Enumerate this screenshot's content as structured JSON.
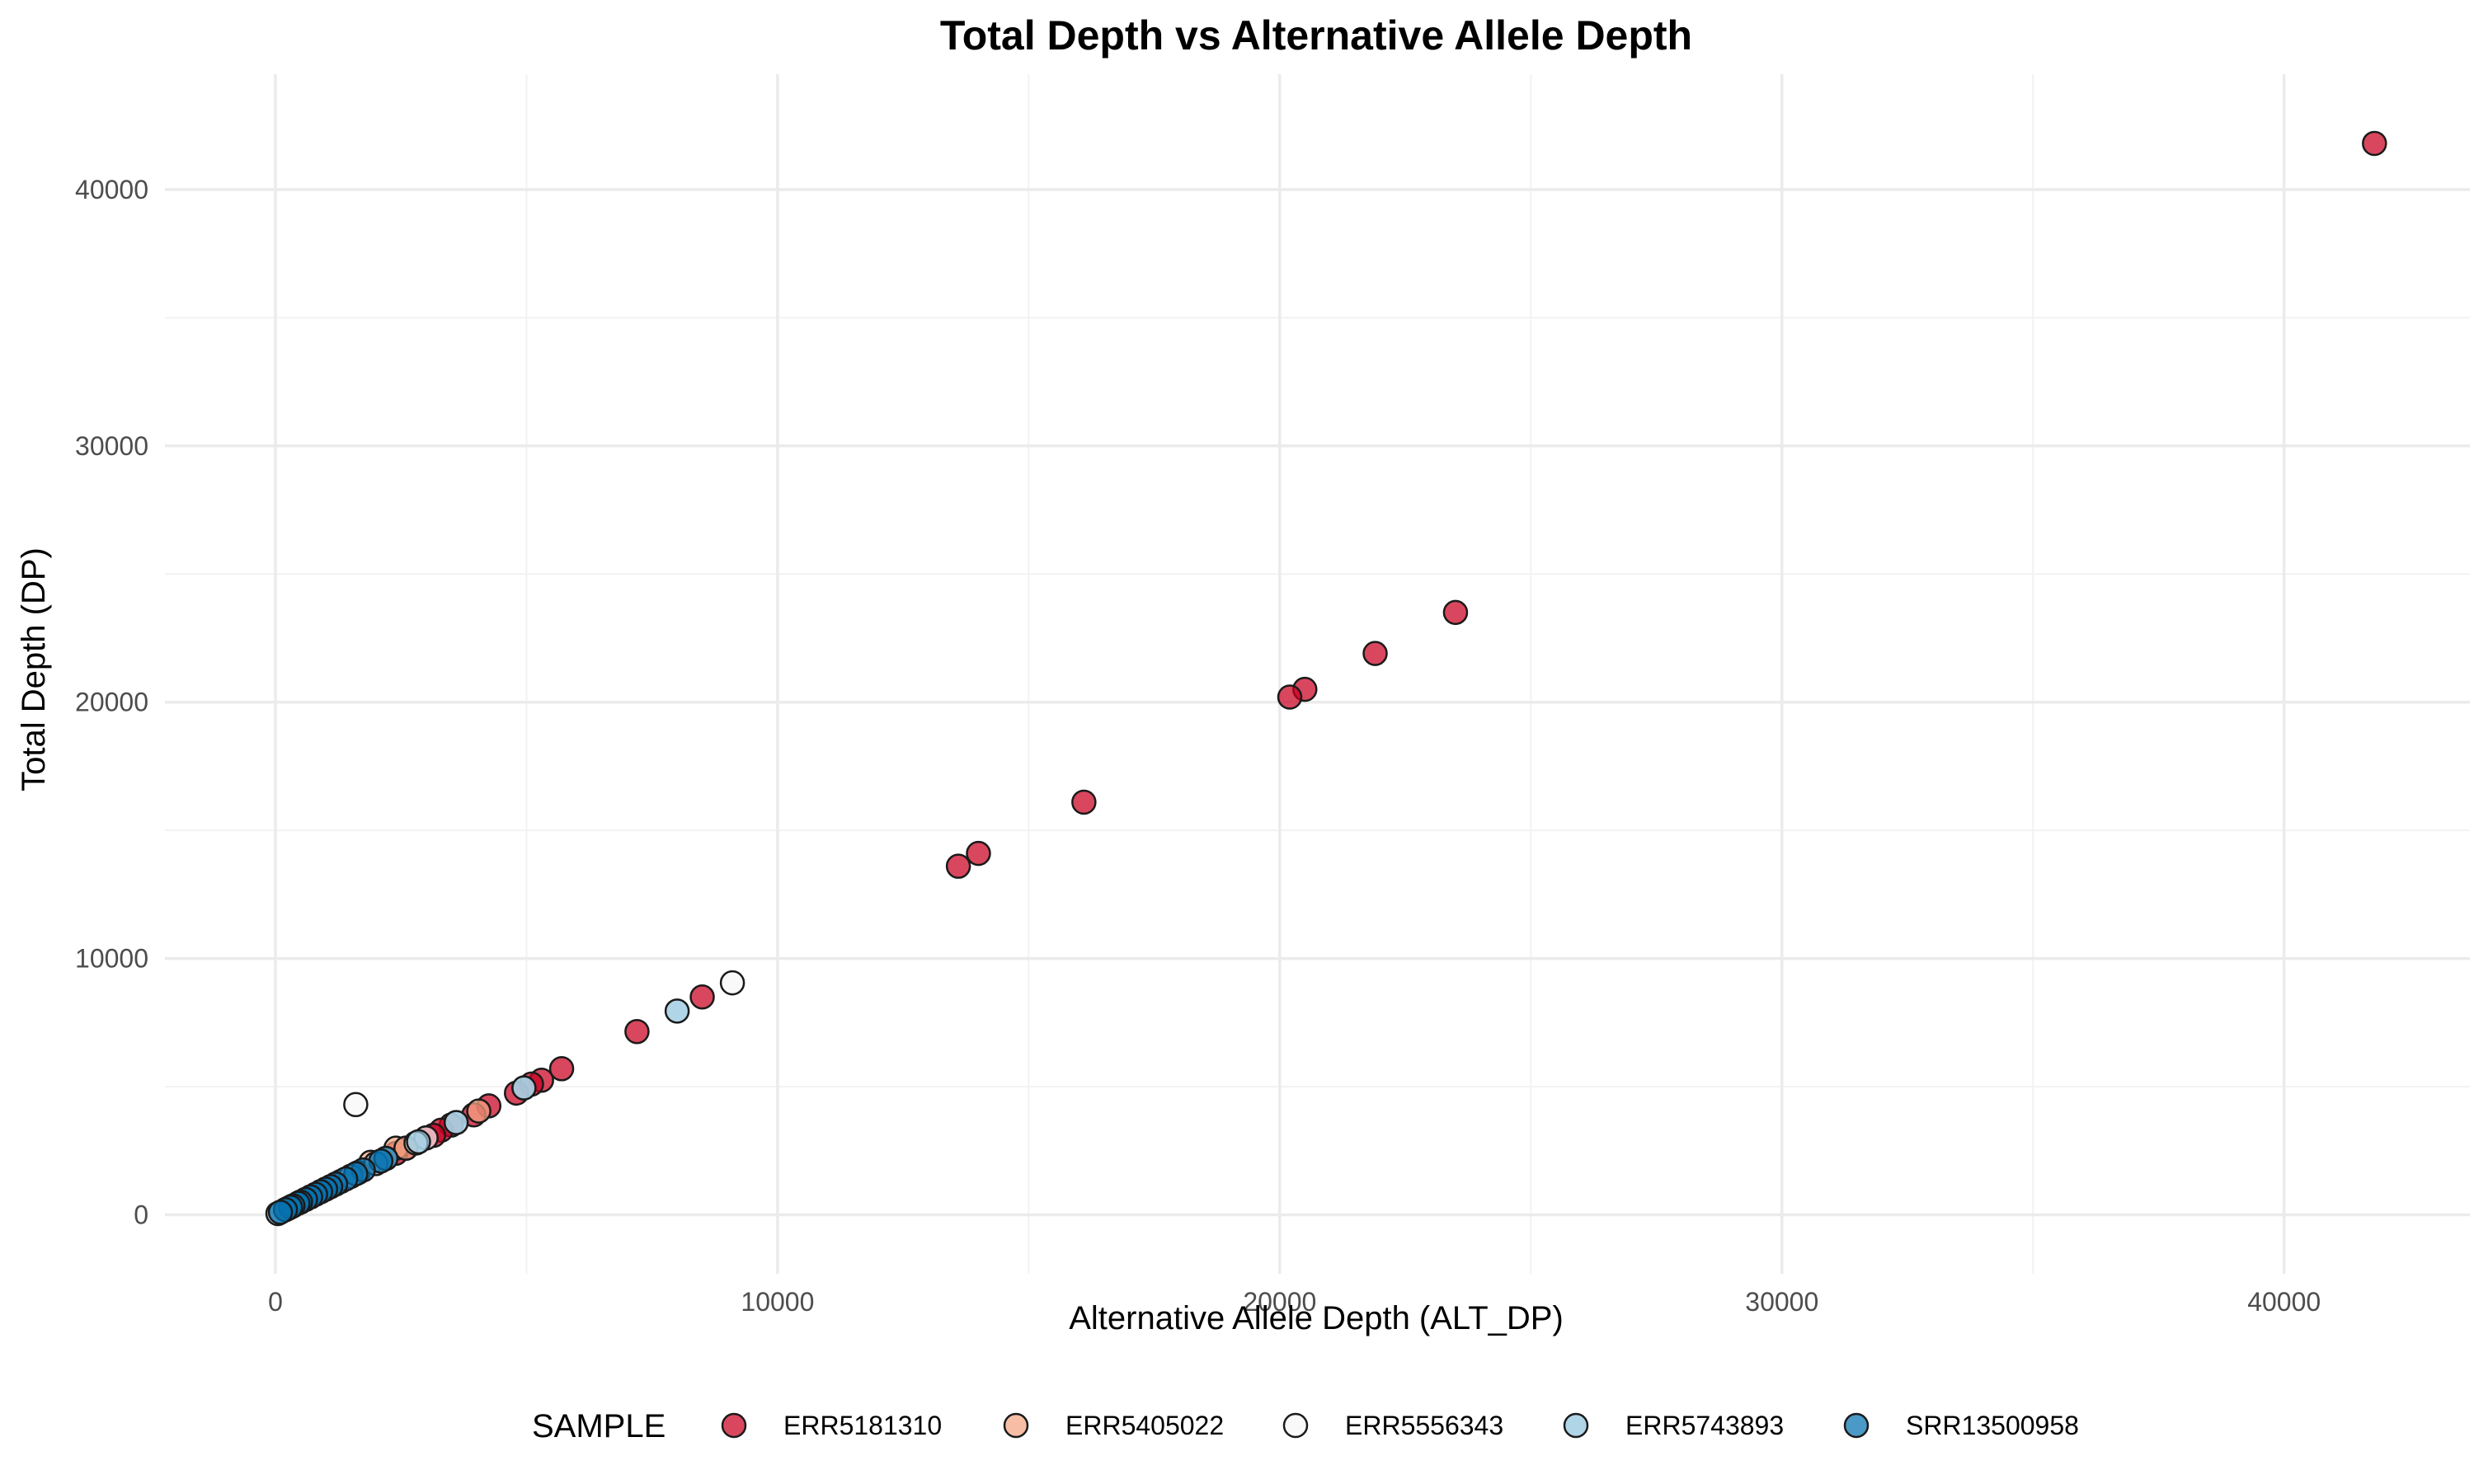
{
  "chart_data": {
    "type": "scatter",
    "title": "Total Depth vs Alternative Allele Depth",
    "xlabel": "Alternative Allele Depth (ALT_DP)",
    "ylabel": "Total Depth (DP)",
    "xlim": [
      -2200,
      43700
    ],
    "ylim": [
      -2300,
      44500
    ],
    "x_ticks": [
      0,
      10000,
      20000,
      30000,
      40000
    ],
    "y_ticks": [
      0,
      10000,
      20000,
      30000,
      40000
    ],
    "x_tick_labels": [
      "0",
      "10000",
      "20000",
      "30000",
      "40000"
    ],
    "y_tick_labels": [
      "0",
      "10000",
      "20000",
      "30000",
      "40000"
    ],
    "grid": true,
    "legend": {
      "title": "SAMPLE",
      "placement": "bottom"
    },
    "series": [
      {
        "name": "ERR5181310",
        "color": "#ca0020",
        "points": [
          [
            41800,
            41800
          ],
          [
            23500,
            23500
          ],
          [
            21900,
            21900
          ],
          [
            20500,
            20500
          ],
          [
            20200,
            20200
          ],
          [
            16100,
            16100
          ],
          [
            14000,
            14100
          ],
          [
            13600,
            13600
          ],
          [
            8500,
            8500
          ],
          [
            7200,
            7150
          ],
          [
            5700,
            5700
          ],
          [
            5300,
            5250
          ],
          [
            5100,
            5100
          ],
          [
            4800,
            4750
          ],
          [
            4250,
            4250
          ],
          [
            3950,
            3900
          ],
          [
            3500,
            3500
          ],
          [
            3300,
            3300
          ],
          [
            3150,
            3100
          ],
          [
            3000,
            3000
          ],
          [
            2600,
            2600
          ],
          [
            2400,
            2400
          ],
          [
            1500,
            1500
          ],
          [
            1000,
            1000
          ],
          [
            500,
            500
          ]
        ]
      },
      {
        "name": "ERR5405022",
        "color": "#f4a582",
        "points": [
          [
            4050,
            4050
          ],
          [
            2400,
            2600
          ],
          [
            2600,
            2600
          ],
          [
            2200,
            2200
          ],
          [
            1900,
            2050
          ],
          [
            1650,
            1650
          ],
          [
            1300,
            1300
          ],
          [
            900,
            900
          ],
          [
            500,
            500
          ]
        ]
      },
      {
        "name": "ERR5556343",
        "color": "#f7f7f7",
        "points": [
          [
            9100,
            9050
          ],
          [
            1600,
            4300
          ],
          [
            4950,
            4950
          ],
          [
            3600,
            3600
          ],
          [
            3000,
            3000
          ],
          [
            2800,
            2800
          ],
          [
            2200,
            2200
          ],
          [
            1500,
            1500
          ],
          [
            700,
            700
          ],
          [
            200,
            200
          ]
        ]
      },
      {
        "name": "ERR5743893",
        "color": "#92c5de",
        "points": [
          [
            8000,
            7950
          ],
          [
            4950,
            4950
          ],
          [
            3600,
            3600
          ],
          [
            2850,
            2850
          ],
          [
            2000,
            2000
          ],
          [
            1500,
            1500
          ],
          [
            1000,
            1000
          ],
          [
            600,
            600
          ],
          [
            250,
            250
          ],
          [
            50,
            50
          ]
        ]
      },
      {
        "name": "SRR13500958",
        "color": "#0571b0",
        "points": [
          [
            2200,
            2200
          ],
          [
            2100,
            2100
          ],
          [
            1750,
            1750
          ],
          [
            1600,
            1600
          ],
          [
            1400,
            1400
          ],
          [
            1200,
            1200
          ],
          [
            1100,
            1100
          ],
          [
            1000,
            1000
          ],
          [
            900,
            900
          ],
          [
            800,
            800
          ],
          [
            700,
            700
          ],
          [
            600,
            600
          ],
          [
            500,
            500
          ],
          [
            450,
            450
          ],
          [
            350,
            350
          ],
          [
            300,
            300
          ],
          [
            200,
            200
          ],
          [
            100,
            100
          ]
        ]
      }
    ]
  }
}
